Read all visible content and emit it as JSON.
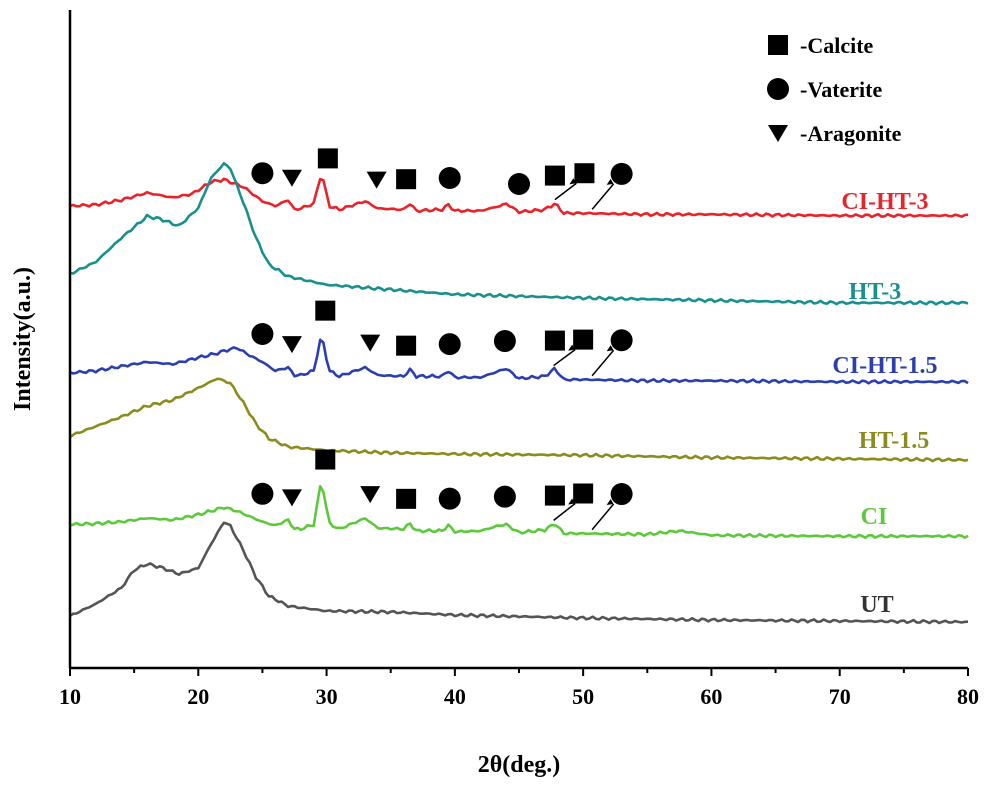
{
  "chart_data": {
    "type": "line",
    "title": "",
    "xlabel": "2θ(deg.)",
    "ylabel": "Intensity(a.u.)",
    "xlim": [
      10,
      80
    ],
    "xticks": [
      10,
      20,
      30,
      40,
      50,
      60,
      70,
      80
    ],
    "yticks_shown": false,
    "grid": false,
    "legend": {
      "placement": "top-right",
      "entries": [
        {
          "symbol": "square",
          "label": "-Calcite"
        },
        {
          "symbol": "circle",
          "label": "-Vaterite"
        },
        {
          "symbol": "triangle-down",
          "label": "-Aragonite"
        }
      ]
    },
    "series": [
      {
        "name": "CI-HT-3",
        "color": "#e8232a",
        "x": [
          10,
          12,
          14,
          16,
          18,
          19.5,
          21,
          22,
          23.5,
          25,
          26,
          27,
          27.5,
          28,
          29,
          29.6,
          30.2,
          31,
          33,
          34,
          36,
          36.5,
          37,
          39,
          39.5,
          40,
          42,
          43.5,
          44,
          45,
          47,
          47.8,
          48.5,
          50,
          55,
          60,
          70,
          80
        ],
        "y": [
          20,
          21,
          25,
          31,
          27,
          30,
          40,
          42,
          36,
          24,
          20,
          25,
          17,
          18,
          22,
          48,
          20,
          17,
          24,
          18,
          17,
          22,
          16,
          17,
          21,
          16,
          16,
          20,
          22,
          15,
          17,
          22,
          14,
          14,
          13,
          13,
          12,
          12
        ]
      },
      {
        "name": "HT-3",
        "color": "#1a8f8f",
        "x": [
          10,
          12,
          14,
          16,
          17,
          18.5,
          20,
          21,
          22,
          22.5,
          23.5,
          24.5,
          25.5,
          27,
          30,
          35,
          40,
          50,
          60,
          70,
          80
        ],
        "y": [
          40,
          50,
          70,
          88,
          86,
          80,
          95,
          120,
          132,
          128,
          100,
          70,
          48,
          38,
          31,
          27,
          23,
          20,
          18,
          16,
          16
        ]
      },
      {
        "name": "CI-HT-1.5",
        "color": "#2b3fae",
        "x": [
          10,
          12,
          14,
          16,
          18,
          20,
          21.5,
          22,
          23,
          24,
          25,
          26,
          27,
          27.5,
          28,
          29,
          29.6,
          30.2,
          31,
          33,
          34,
          36,
          36.5,
          37,
          39,
          39.5,
          40,
          42,
          43.5,
          44,
          45,
          47,
          47.8,
          48.5,
          50,
          55,
          60,
          70,
          80
        ],
        "y": [
          20,
          22,
          26,
          30,
          28,
          34,
          38,
          40,
          43,
          36,
          30,
          22,
          25,
          18,
          18,
          22,
          55,
          22,
          17,
          25,
          18,
          17,
          23,
          17,
          17,
          22,
          16,
          16,
          22,
          24,
          15,
          17,
          24,
          14,
          14,
          13,
          13,
          12,
          12
        ]
      },
      {
        "name": "HT-1.5",
        "color": "#8c8c1e",
        "x": [
          10,
          12,
          14,
          16,
          18,
          20,
          21.5,
          22.5,
          23.5,
          24.5,
          25.5,
          27,
          30,
          35,
          40,
          50,
          60,
          70,
          80
        ],
        "y": [
          30,
          38,
          46,
          55,
          60,
          70,
          78,
          74,
          58,
          40,
          28,
          21,
          18,
          16,
          15,
          14,
          12,
          11,
          10
        ]
      },
      {
        "name": "CI",
        "color": "#5cc93b",
        "x": [
          10,
          12,
          14,
          16,
          18,
          20,
          21.5,
          22,
          23,
          24,
          25,
          26,
          27,
          27.5,
          28,
          29,
          29.6,
          30.2,
          31,
          33,
          34,
          36,
          36.5,
          37,
          39,
          39.5,
          40,
          42,
          43.5,
          44,
          45,
          47,
          47.8,
          48.5,
          50,
          55,
          57.5,
          60,
          70,
          80
        ],
        "y": [
          25,
          26,
          28,
          32,
          30,
          36,
          42,
          44,
          40,
          34,
          28,
          24,
          30,
          20,
          20,
          25,
          75,
          26,
          20,
          32,
          21,
          20,
          26,
          18,
          18,
          24,
          17,
          18,
          24,
          25,
          16,
          19,
          26,
          15,
          15,
          14,
          18,
          13,
          12,
          12
        ]
      },
      {
        "name": "UT",
        "color": "#555555",
        "x": [
          10,
          12,
          14,
          15,
          16,
          17,
          18.5,
          20,
          21,
          22,
          22.5,
          23.5,
          24.5,
          25.5,
          27,
          30,
          35,
          40,
          50,
          60,
          70,
          80
        ],
        "y": [
          16,
          28,
          44,
          62,
          68,
          65,
          58,
          64,
          88,
          110,
          106,
          82,
          55,
          36,
          26,
          21,
          20,
          17,
          14,
          12,
          11,
          10
        ]
      }
    ],
    "series_labels": [
      {
        "name": "CI-HT-3",
        "text": "CI-HT-3",
        "color": "#e8232a"
      },
      {
        "name": "HT-3",
        "text": "HT-3",
        "color": "#1a8f8f"
      },
      {
        "name": "CI-HT-1.5",
        "text": "CI-HT-1.5",
        "color": "#2b3fae"
      },
      {
        "name": "HT-1.5",
        "text": "HT-1.5",
        "color": "#8c8c1e"
      },
      {
        "name": "CI",
        "text": "CI",
        "color": "#5cc93b"
      },
      {
        "name": "UT",
        "text": "UT",
        "color": "#333333"
      }
    ],
    "phase_markers": {
      "CI-HT-3": [
        {
          "symbol": "circle",
          "x": 25.0
        },
        {
          "symbol": "triangle-down",
          "x": 27.3
        },
        {
          "symbol": "square",
          "x": 30.1
        },
        {
          "symbol": "triangle-down",
          "x": 33.9
        },
        {
          "symbol": "square",
          "x": 36.2
        },
        {
          "symbol": "circle",
          "x": 39.6
        },
        {
          "symbol": "circle",
          "x": 45.0
        },
        {
          "symbol": "square",
          "x": 47.8
        },
        {
          "symbol": "square",
          "x": 50.1,
          "arrow": true
        },
        {
          "symbol": "circle",
          "x": 53.0,
          "arrow": true
        }
      ],
      "CI-HT-1.5": [
        {
          "symbol": "circle",
          "x": 25.0
        },
        {
          "symbol": "triangle-down",
          "x": 27.3
        },
        {
          "symbol": "square",
          "x": 29.9
        },
        {
          "symbol": "triangle-down",
          "x": 33.4
        },
        {
          "symbol": "square",
          "x": 36.2
        },
        {
          "symbol": "circle",
          "x": 39.6
        },
        {
          "symbol": "circle",
          "x": 43.9
        },
        {
          "symbol": "square",
          "x": 47.8
        },
        {
          "symbol": "square",
          "x": 50.0,
          "arrow": true
        },
        {
          "symbol": "circle",
          "x": 53.0,
          "arrow": true
        }
      ],
      "CI": [
        {
          "symbol": "circle",
          "x": 25.0
        },
        {
          "symbol": "triangle-down",
          "x": 27.3
        },
        {
          "symbol": "square",
          "x": 29.9
        },
        {
          "symbol": "triangle-down",
          "x": 33.4
        },
        {
          "symbol": "square",
          "x": 36.2
        },
        {
          "symbol": "circle",
          "x": 39.6
        },
        {
          "symbol": "circle",
          "x": 43.9
        },
        {
          "symbol": "square",
          "x": 47.8
        },
        {
          "symbol": "square",
          "x": 50.0,
          "arrow": true
        },
        {
          "symbol": "circle",
          "x": 53.0,
          "arrow": true
        }
      ]
    }
  }
}
